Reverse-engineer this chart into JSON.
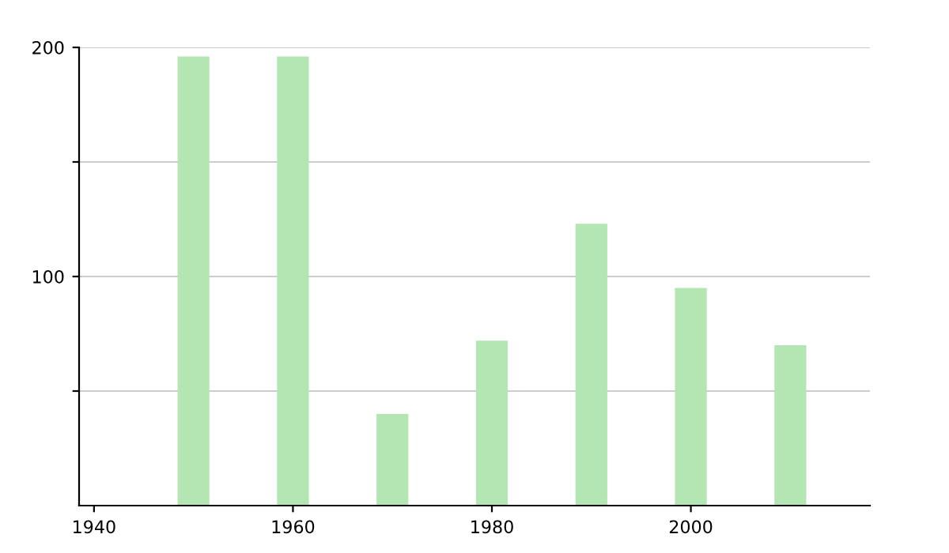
{
  "chart_data": {
    "type": "bar",
    "x": [
      1950,
      1960,
      1970,
      1980,
      1990,
      2000,
      2010
    ],
    "values": [
      196,
      196,
      40,
      72,
      123,
      95,
      70
    ],
    "color": "#b3e6b3",
    "xlim": [
      1938.5,
      2018
    ],
    "xticks": [
      1940,
      1960,
      1980,
      2000
    ],
    "ylim": [
      0,
      200
    ],
    "yticks": [
      {
        "value": 50,
        "label": null
      },
      100,
      {
        "value": 150,
        "label": null
      },
      200
    ],
    "grid": "y",
    "legend": false
  }
}
